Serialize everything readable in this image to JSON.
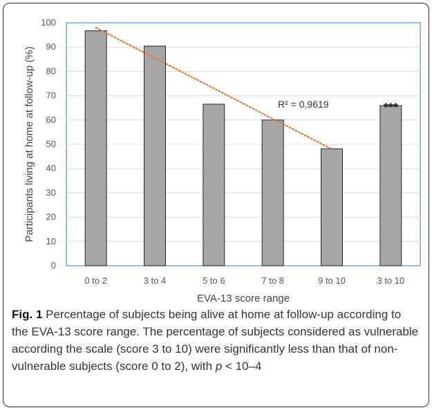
{
  "chart_data": {
    "type": "bar",
    "categories": [
      "0 to 2",
      "3 to 4",
      "5 to 6",
      "7 to 8",
      "9 to 10",
      "3 to 10"
    ],
    "values": [
      96.7,
      90.4,
      66.5,
      60.0,
      48.1,
      65.9
    ],
    "xlabel": "EVA-13 score range",
    "ylabel": "Participants living at home at follow-up (%)",
    "ylim": [
      0,
      100
    ],
    "yticks": [
      0,
      10,
      20,
      30,
      40,
      50,
      60,
      70,
      80,
      90,
      100
    ],
    "grid": true,
    "bar_color": "#a6a6a6",
    "trendline": {
      "type": "linear",
      "over_categories": [
        "0 to 2",
        "3 to 4",
        "5 to 6",
        "7 to 8",
        "9 to 10"
      ],
      "y_start": 98.0,
      "y_end": 48.0,
      "color": "#e0782d",
      "label": "R² = 0,9619"
    },
    "annotations": [
      {
        "category": "3 to 10",
        "text": "***"
      }
    ]
  },
  "caption": {
    "label": "Fig. 1",
    "text_main": " Percentage of subjects being alive at home at follow-up according to the EVA-13 score range. The percentage of subjects considered as vulnerable according the scale (score 3 to 10) were significantly less than that of non-vulnerable subjects (score 0 to 2), with ",
    "p_symbol": "p",
    "text_end": " < 10–4"
  }
}
